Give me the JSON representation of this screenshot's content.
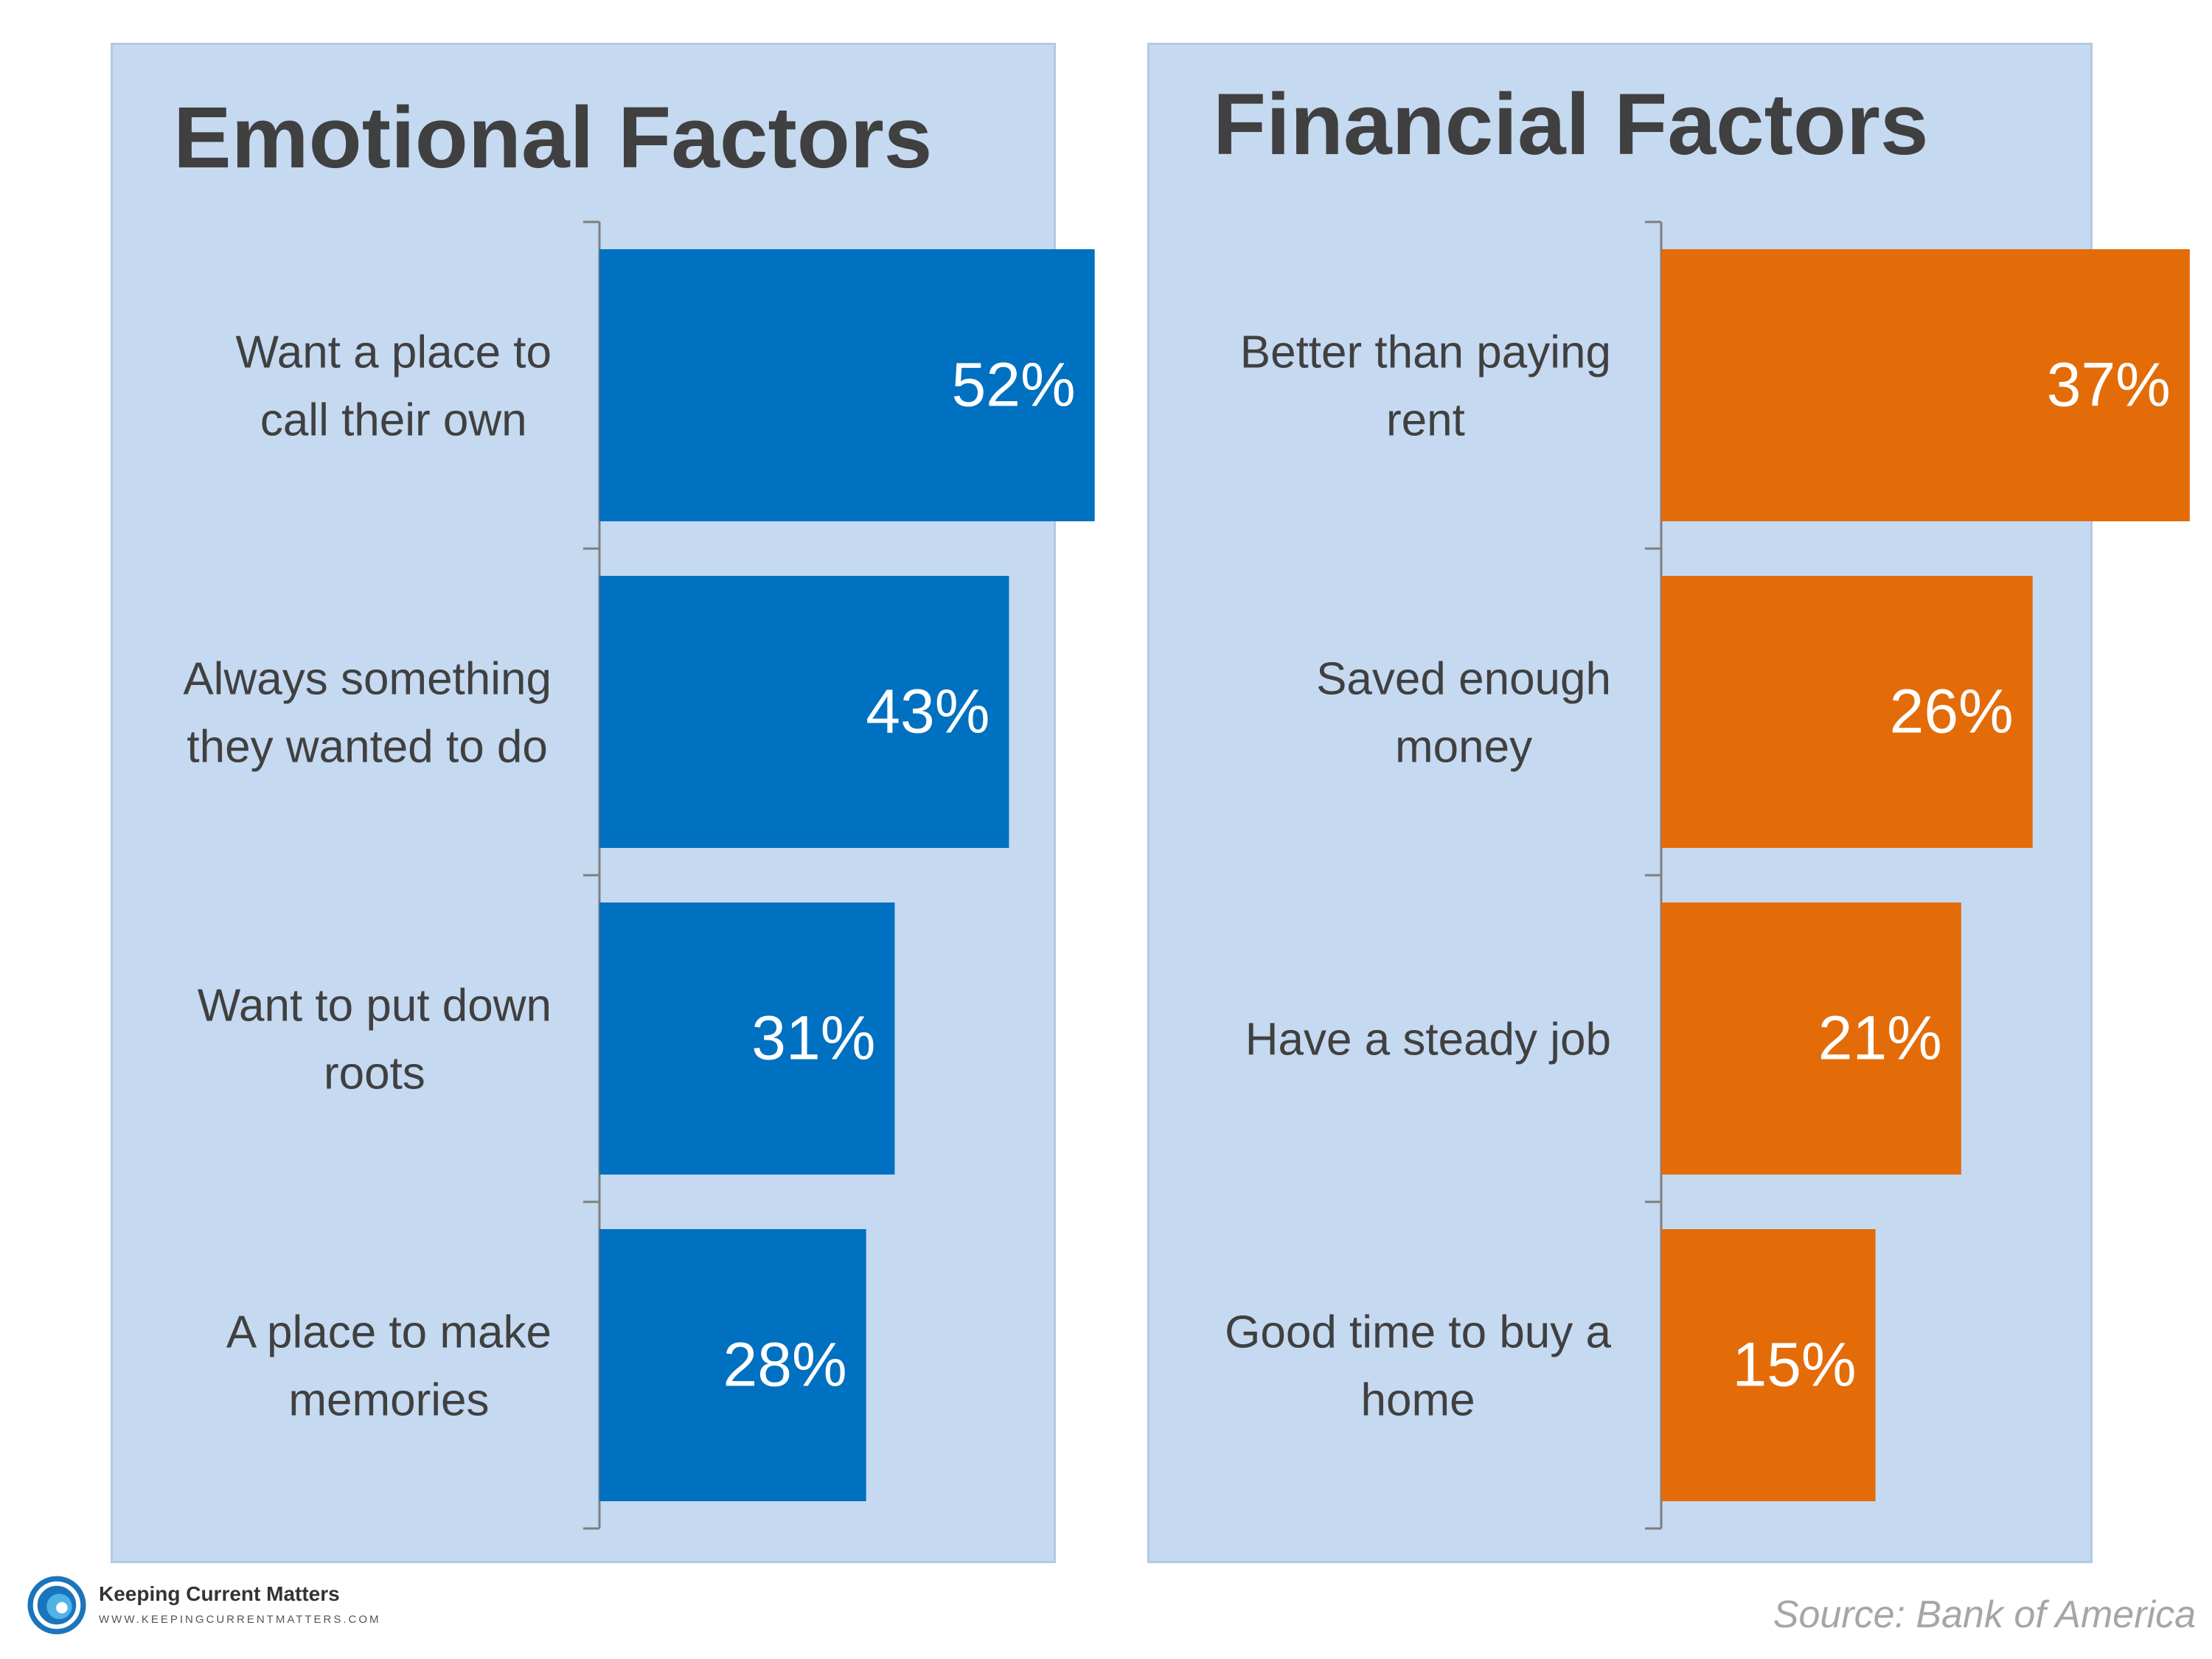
{
  "chart_data": [
    {
      "type": "bar",
      "orientation": "horizontal",
      "title": "Emotional Factors",
      "categories": [
        [
          "Want a place to",
          "call their own"
        ],
        [
          "Always something",
          "they wanted to do"
        ],
        [
          "Want to put down",
          "roots"
        ],
        [
          "A place to make",
          "memories"
        ]
      ],
      "values": [
        52,
        43,
        31,
        28
      ],
      "value_labels": [
        "52%",
        "43%",
        "31%",
        "28%"
      ],
      "xlim": [
        0,
        60
      ],
      "color": "#0070c0",
      "grid": false
    },
    {
      "type": "bar",
      "orientation": "horizontal",
      "title": "Financial Factors",
      "categories": [
        [
          "Better than paying",
          "rent"
        ],
        [
          "Saved enough",
          "money"
        ],
        [
          "Have a steady job"
        ],
        [
          "Good time to buy a",
          "home"
        ]
      ],
      "values": [
        37,
        26,
        21,
        15
      ],
      "value_labels": [
        "37%",
        "26%",
        "21%",
        "15%"
      ],
      "xlim": [
        0,
        40
      ],
      "color": "#e36c09",
      "grid": false
    }
  ],
  "footer": {
    "brand_name": "Keeping Current Matters",
    "brand_url": "WWW.KEEPINGCURRENTMATTERS.COM",
    "source": "Source: Bank of America",
    "logo_icon": "swirl-logo-icon",
    "logo_colors": [
      "#1b75bc",
      "#4fb3e8"
    ]
  }
}
